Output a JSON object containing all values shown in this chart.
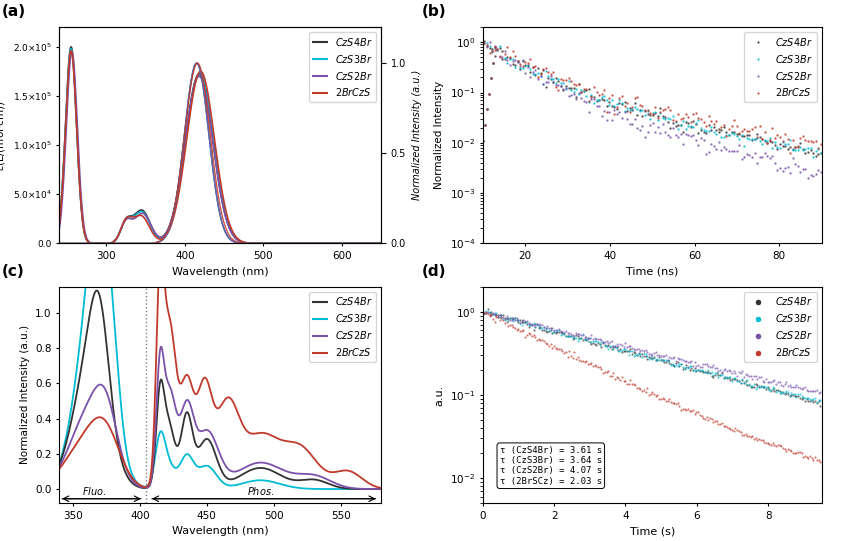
{
  "colors": {
    "CzS4Br": "#333333",
    "CzS3Br": "#00bcd4",
    "CzS2Br": "#7b52ab",
    "2BrCzS": "#c0392b"
  },
  "panel_a": {
    "title": "(a)",
    "xlabel": "Wavelength (nm)",
    "ylabel_left": "ε(L/(mol·cm))",
    "ylabel_right": "Normalized Intensity (a.u.)",
    "xlim": [
      240,
      650
    ],
    "ylim_left": [
      0,
      220000.0
    ],
    "ylim_right": [
      0,
      1.2
    ],
    "yticks_left": [
      0,
      50000.0,
      100000.0,
      150000.0,
      200000.0
    ],
    "ytick_labels_left": [
      "0.0",
      "5.0×10⁴",
      "1.0×10⁵",
      "1.5×10⁵",
      "2.0×10⁵"
    ],
    "yticks_right": [
      0.0,
      0.5,
      1.0
    ],
    "xticks": [
      300,
      400,
      500,
      600
    ]
  },
  "panel_b": {
    "title": "(b)",
    "xlabel": "Time (ns)",
    "ylabel": "Normalized Intensity",
    "xlim": [
      10,
      90
    ],
    "ylim": [
      0.0001,
      2
    ],
    "xticks": [
      20,
      40,
      60,
      80
    ]
  },
  "panel_c": {
    "title": "(c)",
    "xlabel": "Wavelength (nm)",
    "ylabel": "Normalized Intensity (a.u.)",
    "xlim": [
      340,
      580
    ],
    "ylim": [
      -0.08,
      1.15
    ],
    "xticks": [
      350,
      400,
      450,
      500,
      550
    ],
    "dotted_line_x": 405,
    "fluo_label": "Fluo.",
    "phos_label": "Phos."
  },
  "panel_d": {
    "title": "(d)",
    "xlabel": "Time (s)",
    "ylabel": "a.u.",
    "xlim": [
      0,
      9.5
    ],
    "ylim": [
      0.005,
      2
    ],
    "xticks": [
      0,
      2,
      4,
      6,
      8
    ],
    "tau_labels": [
      "τ (CzS4Br) = 3.61 s",
      "τ (CzS3Br) = 3.64 s",
      "τ (CzS2Br) = 4.07 s",
      "τ (2BrSCz) = 2.03 s"
    ]
  },
  "legend_labels": [
    "CzS4Br",
    "CzS3Br",
    "CzS2Br",
    "2BrCzS"
  ]
}
